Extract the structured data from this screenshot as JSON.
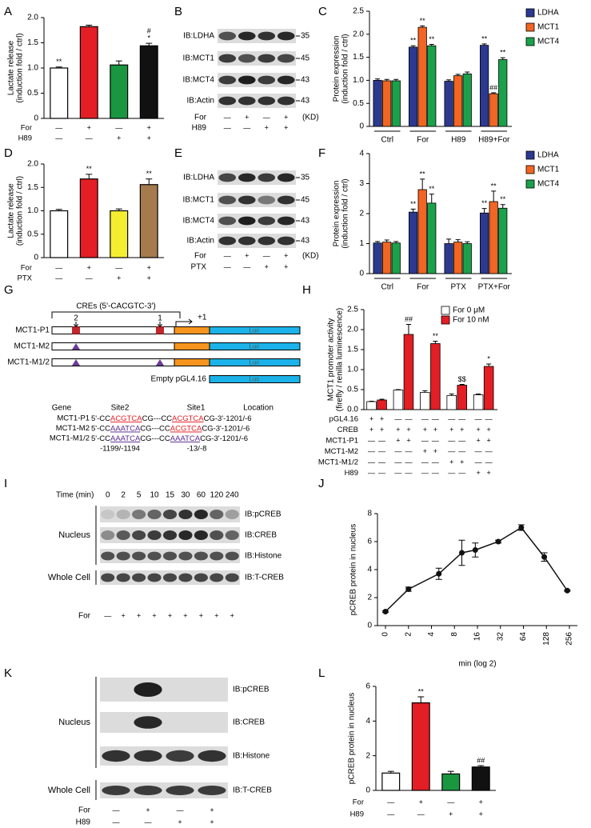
{
  "panel_labels": [
    "A",
    "B",
    "C",
    "D",
    "E",
    "F",
    "G",
    "H",
    "I",
    "J",
    "K",
    "L"
  ],
  "chart_data": [
    {
      "type": "bar",
      "ylabel": [
        "Lactate release",
        "(induction fold / ctrl)"
      ],
      "values": [
        1.0,
        1.82,
        1.06,
        1.44
      ],
      "errors": [
        0.02,
        0.03,
        0.08,
        0.05
      ],
      "colors": [
        "#ffffff",
        "#e31e24",
        "#1a9641",
        "#111111"
      ],
      "annotations": [
        [
          "**"
        ],
        [],
        [],
        [
          "#",
          "*"
        ]
      ],
      "ylim": [
        0,
        2
      ],
      "yticks": [
        0,
        0.5,
        {
          "value": 1,
          "label": "1.0"
        },
        1.5,
        {
          "value": 2,
          "label": "2.0"
        }
      ],
      "rows": [
        {
          "label": "For",
          "marks": [
            "—",
            "+",
            "—",
            "+"
          ]
        },
        {
          "label": "H89",
          "marks": [
            "—",
            "—",
            "+",
            "+"
          ]
        }
      ]
    },
    {
      "type": "grouped_bar",
      "ylabel": [
        "Protein expression",
        "(induction fold / ctrl)"
      ],
      "categories": [
        "Ctrl",
        "For",
        "H89",
        "H89+For"
      ],
      "series": [
        {
          "name": "LDHA",
          "color": "#2b3990",
          "values": [
            1.0,
            1.72,
            0.98,
            1.76
          ],
          "errors": [
            0.03,
            0.03,
            0.03,
            0.03
          ],
          "annotations": [
            null,
            "**",
            null,
            "**"
          ]
        },
        {
          "name": "MCT1",
          "color": "#f26522",
          "values": [
            0.99,
            2.15,
            1.1,
            0.71
          ],
          "errors": [
            0.03,
            0.03,
            0.03,
            0.02
          ],
          "annotations": [
            null,
            "**",
            null,
            "##"
          ]
        },
        {
          "name": "MCT4",
          "color": "#1aa14a",
          "values": [
            0.99,
            1.75,
            1.14,
            1.45
          ],
          "errors": [
            0.03,
            0.03,
            0.04,
            0.04
          ],
          "annotations": [
            null,
            "**",
            null,
            "**"
          ]
        }
      ],
      "ylim": [
        0,
        2.5
      ],
      "yticks": [
        0,
        0.5,
        {
          "value": 1,
          "label": "1.0"
        },
        1.5,
        {
          "value": 2,
          "label": "2.0"
        },
        2.5
      ],
      "legend": "right"
    },
    {
      "type": "bar",
      "ylabel": [
        "Lactate release",
        "(induction fold / ctrl)"
      ],
      "values": [
        1.0,
        1.68,
        1.0,
        1.56
      ],
      "errors": [
        0.03,
        0.1,
        0.04,
        0.12
      ],
      "colors": [
        "#ffffff",
        "#e31e24",
        "#f5ee30",
        "#a57a4c"
      ],
      "annotations": [
        [],
        [
          "**"
        ],
        [],
        [
          "**"
        ]
      ],
      "ylim": [
        0,
        2
      ],
      "yticks": [
        0,
        0.5,
        {
          "value": 1,
          "label": "1.0"
        },
        1.5,
        {
          "value": 2,
          "label": "2.0"
        }
      ],
      "rows": [
        {
          "label": "For",
          "marks": [
            "—",
            "+",
            "—",
            "+"
          ]
        },
        {
          "label": "PTX",
          "marks": [
            "—",
            "—",
            "+",
            "+"
          ]
        }
      ]
    },
    {
      "type": "grouped_bar",
      "ylabel": [
        "Protein expression",
        "(induction fold / ctrl)"
      ],
      "categories": [
        "Ctrl",
        "For",
        "PTX",
        "PTX+For"
      ],
      "series": [
        {
          "name": "LDHA",
          "color": "#2b3990",
          "values": [
            1.02,
            2.05,
            1.0,
            2.02
          ],
          "errors": [
            0.05,
            0.1,
            0.15,
            0.15
          ],
          "annotations": [
            null,
            "**",
            null,
            "**"
          ]
        },
        {
          "name": "MCT1",
          "color": "#f26522",
          "values": [
            1.05,
            2.8,
            1.05,
            2.4
          ],
          "errors": [
            0.07,
            0.35,
            0.08,
            0.35
          ],
          "annotations": [
            null,
            "**",
            null,
            "**"
          ]
        },
        {
          "name": "MCT4",
          "color": "#1aa14a",
          "values": [
            1.02,
            2.35,
            1.0,
            2.18
          ],
          "errors": [
            0.05,
            0.3,
            0.06,
            0.12
          ],
          "annotations": [
            null,
            "**",
            null,
            "**"
          ]
        }
      ],
      "ylim": [
        0,
        4
      ],
      "yticks": [
        0,
        1,
        2,
        3,
        4
      ],
      "legend": "right"
    },
    {
      "type": "grouped_bar",
      "ylabel": [
        "MCT1 promoter activity",
        "(firefly / renilla luminescence)"
      ],
      "series": [
        {
          "name": "For 0 μM",
          "color": "#ffffff",
          "values": [
            0.2,
            0.49,
            0.43,
            0.35,
            0.37
          ],
          "errors": [
            0.01,
            0.01,
            0.04,
            0.04,
            0.02
          ],
          "annotations": [
            null,
            null,
            null,
            null,
            null
          ]
        },
        {
          "name": "For 10 nM",
          "color": "#e31e24",
          "values": [
            0.24,
            1.88,
            1.65,
            0.61,
            1.08
          ],
          "errors": [
            0.02,
            0.25,
            0.06,
            0.02,
            0.06
          ],
          "annotations": [
            null,
            "##",
            "**",
            "$$",
            "*"
          ]
        }
      ],
      "ylim": [
        0,
        2.5
      ],
      "yticks": [
        {
          "value": 0,
          "label": "0.0"
        },
        0.5,
        {
          "value": 1,
          "label": "1.0"
        },
        1.5,
        {
          "value": 2,
          "label": "2.0"
        },
        2.5
      ],
      "legend": "upper right",
      "rows": [
        {
          "label": "pGL4.16",
          "marks": [
            "+",
            "+",
            "—",
            "—",
            "—",
            "—",
            "—",
            "—",
            "—",
            "—"
          ]
        },
        {
          "label": "CREB",
          "marks": [
            "+",
            "+",
            "+",
            "+",
            "+",
            "+",
            "+",
            "+",
            "+",
            "+"
          ]
        },
        {
          "label": "MCT1-P1",
          "marks": [
            "—",
            "—",
            "+",
            "+",
            "—",
            "—",
            "—",
            "—",
            "+",
            "+"
          ]
        },
        {
          "label": "MCT1-M2",
          "marks": [
            "—",
            "—",
            "—",
            "—",
            "+",
            "+",
            "—",
            "—",
            "—",
            "—"
          ]
        },
        {
          "label": "MCT1-M1/2",
          "marks": [
            "—",
            "—",
            "—",
            "—",
            "—",
            "—",
            "+",
            "+",
            "—",
            "—"
          ]
        },
        {
          "label": "H89",
          "marks": [
            "—",
            "—",
            "—",
            "—",
            "—",
            "—",
            "—",
            "—",
            "+",
            "+"
          ]
        }
      ]
    },
    {
      "type": "line",
      "ylabel": "pCREB protein in nucleus",
      "xlabel": "min (log 2)",
      "x": [
        0,
        2,
        5,
        10,
        15,
        30,
        60,
        120,
        240
      ],
      "values": [
        1.0,
        2.6,
        3.7,
        5.2,
        5.4,
        6.0,
        7.0,
        4.9,
        2.5
      ],
      "errors": [
        0.05,
        0.15,
        0.4,
        0.9,
        0.5,
        0.1,
        0.2,
        0.3,
        0.05
      ],
      "xscale": "log2",
      "xlim": [
        0,
        256
      ],
      "xticks": [
        0,
        2,
        4,
        8,
        16,
        32,
        64,
        128,
        256
      ],
      "ylim": [
        0,
        8
      ],
      "yticks": [
        0,
        2,
        4,
        6,
        8
      ],
      "color": "#111111"
    },
    {
      "type": "bar",
      "ylabel": "pCREB protein in nucleus",
      "values": [
        1.0,
        5.05,
        0.95,
        1.35
      ],
      "errors": [
        0.1,
        0.35,
        0.15,
        0.08
      ],
      "colors": [
        "#ffffff",
        "#e31e24",
        "#1a9641",
        "#111111"
      ],
      "annotations": [
        [],
        [
          "**"
        ],
        [],
        [
          "##"
        ]
      ],
      "ylim": [
        0,
        6
      ],
      "yticks": [
        0,
        2,
        4,
        6
      ],
      "rows": [
        {
          "label": "For",
          "marks": [
            "—",
            "+",
            "—",
            "+"
          ]
        },
        {
          "label": "H89",
          "marks": [
            "—",
            "—",
            "+",
            "+"
          ]
        }
      ]
    }
  ],
  "blots": [
    {
      "rows": [
        {
          "label": "IB:LDHA",
          "marker": 35
        },
        {
          "label": "IB:MCT1",
          "marker": 45
        },
        {
          "label": "IB:MCT4",
          "marker": 43
        },
        {
          "label": "IB:Actin",
          "marker": 43
        }
      ],
      "unit": "(KD)",
      "treatments": [
        {
          "label": "For",
          "marks": [
            "—",
            "+",
            "—",
            "+"
          ]
        },
        {
          "label": "H89",
          "marks": [
            "—",
            "—",
            "+",
            "+"
          ]
        }
      ]
    },
    {
      "rows": [
        {
          "label": "IB:LDHA",
          "marker": 35
        },
        {
          "label": "IB:MCT1",
          "marker": 45
        },
        {
          "label": "IB:MCT4",
          "marker": 43
        },
        {
          "label": "IB:Actin",
          "marker": 43
        }
      ],
      "unit": "(KD)",
      "treatments": [
        {
          "label": "For",
          "marks": [
            "—",
            "+",
            "—",
            "+"
          ]
        },
        {
          "label": "PTX",
          "marks": [
            "—",
            "—",
            "+",
            "+"
          ]
        }
      ]
    },
    {
      "header_label": "Time (min)",
      "header": [
        0,
        2,
        5,
        10,
        15,
        30,
        60,
        120,
        240
      ],
      "rows": [
        {
          "label": "IB:pCREB"
        },
        {
          "label": "IB:CREB"
        },
        {
          "label": "IB:Histone"
        },
        {
          "label": "IB:T-CREB"
        }
      ],
      "groups": [
        "Nucleus",
        "Whole Cell"
      ],
      "treatments": [
        {
          "label": "For",
          "marks": [
            "—",
            "+",
            "+",
            "+",
            "+",
            "+",
            "+",
            "+",
            "+"
          ]
        }
      ]
    },
    {
      "rows": [
        {
          "label": "IB:pCREB"
        },
        {
          "label": "IB:CREB"
        },
        {
          "label": "IB:Histone"
        },
        {
          "label": "IB:T-CREB"
        }
      ],
      "groups": [
        "Nucleus",
        "Whole Cell"
      ],
      "treatments": [
        {
          "label": "For",
          "marks": [
            "—",
            "+",
            "—",
            "+"
          ]
        },
        {
          "label": "H89",
          "marks": [
            "—",
            "—",
            "+",
            "+"
          ]
        }
      ]
    }
  ],
  "diagram": {
    "cres": "CREs (5'-CACGTC-3')",
    "sites": [
      "2",
      "1"
    ],
    "tss": "+1",
    "constructs": [
      {
        "name": "MCT1-P1",
        "luc": "Luc"
      },
      {
        "name": "MCT1-M2",
        "luc": "Luc"
      },
      {
        "name": "MCT1-M1/2",
        "luc": "Luc"
      },
      {
        "name": "Empty pGL4.16",
        "luc": "Luc"
      }
    ],
    "table": {
      "header": [
        "Gene",
        "Site2",
        "Site1",
        "Location"
      ],
      "rows": [
        {
          "gene": "MCT1-P1",
          "seq": [
            "5'-CC",
            "ACGTCA",
            "CG---CC",
            "ACGTCA",
            "CG-3'"
          ],
          "location": "-1201/-6",
          "site_colors": [
            "#e31e24",
            "#e31e24"
          ]
        },
        {
          "gene": "MCT1-M2",
          "seq": [
            "5'-CC",
            "AAATCA",
            "CG---CC",
            "ACGTCA",
            "CG-3'"
          ],
          "location": "-1201/-6",
          "site_colors": [
            "#5b2c8f",
            "#e31e24"
          ]
        },
        {
          "gene": "MCT1-M1/2",
          "seq": [
            "5'-CC",
            "AAATCA",
            "CG---CC",
            "AAATCA",
            "CG-3'"
          ],
          "location": "-1201/-6",
          "site_colors": [
            "#5b2c8f",
            "#5b2c8f"
          ]
        }
      ],
      "footer": [
        "-1199/-1194",
        "-13/-8"
      ]
    }
  }
}
